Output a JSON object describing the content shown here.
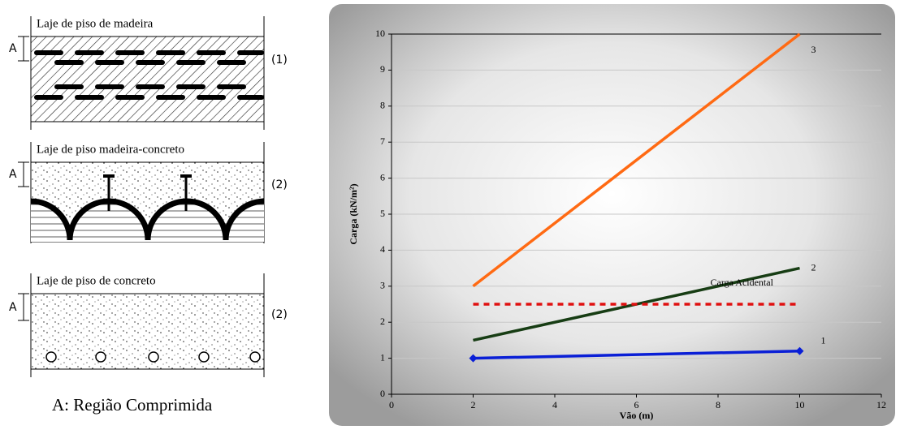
{
  "diagrams": [
    {
      "title": "Laje de piso de madeira",
      "dimension_label": "A",
      "tag": "(1)"
    },
    {
      "title": "Laje de piso madeira-concreto",
      "dimension_label": "A",
      "tag": "(2)"
    },
    {
      "title": "Laje de piso de concreto",
      "dimension_label": "A",
      "tag": "(2)"
    }
  ],
  "note": "A: Região Comprimida",
  "chart_data": {
    "type": "line",
    "xlabel": "Vão (m)",
    "ylabel": "Carga (kN/m²)",
    "x": [
      2,
      10
    ],
    "series": [
      {
        "name": "3",
        "color": "#ff6a13",
        "values": [
          3,
          10
        ]
      },
      {
        "name": "2",
        "color": "#173d14",
        "values": [
          1.5,
          3.5
        ]
      },
      {
        "name": "1",
        "color": "#0a1fd6",
        "values": [
          1,
          1.2
        ],
        "marker": "diamond"
      },
      {
        "name": "Carga Acidental",
        "color": "#e01010",
        "values": [
          2.5,
          2.5
        ],
        "dash": true
      }
    ],
    "xlim": [
      0,
      12
    ],
    "xticks": [
      0,
      2,
      4,
      6,
      8,
      10,
      12
    ],
    "ylim": [
      0,
      10
    ],
    "yticks": [
      0,
      1,
      2,
      3,
      4,
      5,
      6,
      7,
      8,
      9,
      10
    ],
    "grid": true
  }
}
